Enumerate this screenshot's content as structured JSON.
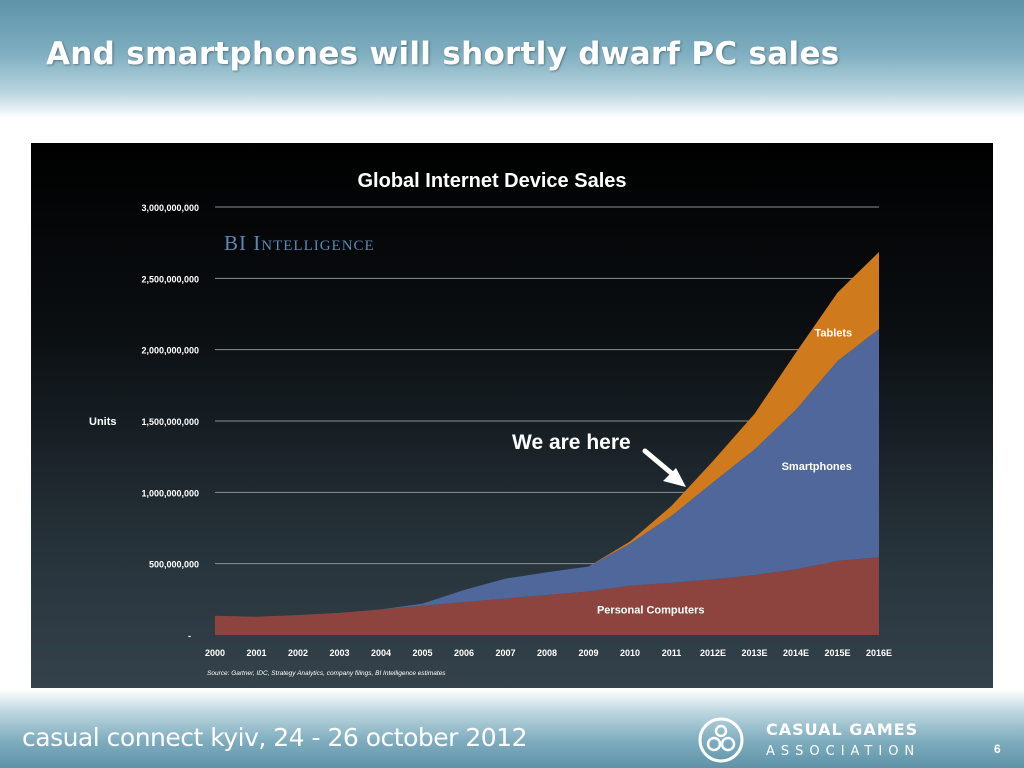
{
  "slide": {
    "title": "And smartphones will shortly dwarf PC sales",
    "page_number": "6"
  },
  "footer": {
    "event": "casual connect kyiv, 24 - 26 october 2012",
    "association_name": "CASUAL GAMES",
    "association_sub": "ASSOCIATION",
    "logo_icon": "casual-games-association-logo"
  },
  "chart_data": {
    "type": "area",
    "title": "Global Internet Device Sales",
    "brand": "BI Intelligence",
    "ylabel": "Units",
    "xlabel": "",
    "x": [
      "2000",
      "2001",
      "2002",
      "2003",
      "2004",
      "2005",
      "2006",
      "2007",
      "2008",
      "2009",
      "2010",
      "2011",
      "2012E",
      "2013E",
      "2014E",
      "2015E",
      "2016E"
    ],
    "ylim": [
      0,
      3000000000
    ],
    "yticks": [
      {
        "value": 0,
        "label": "-"
      },
      {
        "value": 500000000,
        "label": "500,000,000"
      },
      {
        "value": 1000000000,
        "label": "1,000,000,000"
      },
      {
        "value": 1500000000,
        "label": "1,500,000,000"
      },
      {
        "value": 2000000000,
        "label": "2,000,000,000"
      },
      {
        "value": 2500000000,
        "label": "2,500,000,000"
      },
      {
        "value": 3000000000,
        "label": "3,000,000,000"
      }
    ],
    "stacked": true,
    "series": [
      {
        "name": "Personal Computers",
        "color": "#8e443e",
        "values": [
          135000000,
          128000000,
          140000000,
          155000000,
          180000000,
          205000000,
          230000000,
          255000000,
          280000000,
          305000000,
          345000000,
          365000000,
          390000000,
          420000000,
          460000000,
          520000000,
          545000000
        ]
      },
      {
        "name": "Smartphones",
        "color": "#4f679a",
        "values": [
          0,
          0,
          0,
          0,
          0,
          15000000,
          85000000,
          140000000,
          160000000,
          175000000,
          295000000,
          470000000,
          680000000,
          880000000,
          1120000000,
          1400000000,
          1600000000
        ]
      },
      {
        "name": "Tablets",
        "color": "#d07a1e",
        "values": [
          0,
          0,
          0,
          0,
          0,
          0,
          0,
          0,
          0,
          0,
          15000000,
          70000000,
          150000000,
          250000000,
          400000000,
          480000000,
          540000000
        ]
      }
    ],
    "annotation": "We are here",
    "source": "Source: Gartner, IDC, Strategy Analytics, company filings, BI Intelligence estimates",
    "grid": true,
    "grid_color": "#8a8f93",
    "text_color": "#ffffff"
  }
}
